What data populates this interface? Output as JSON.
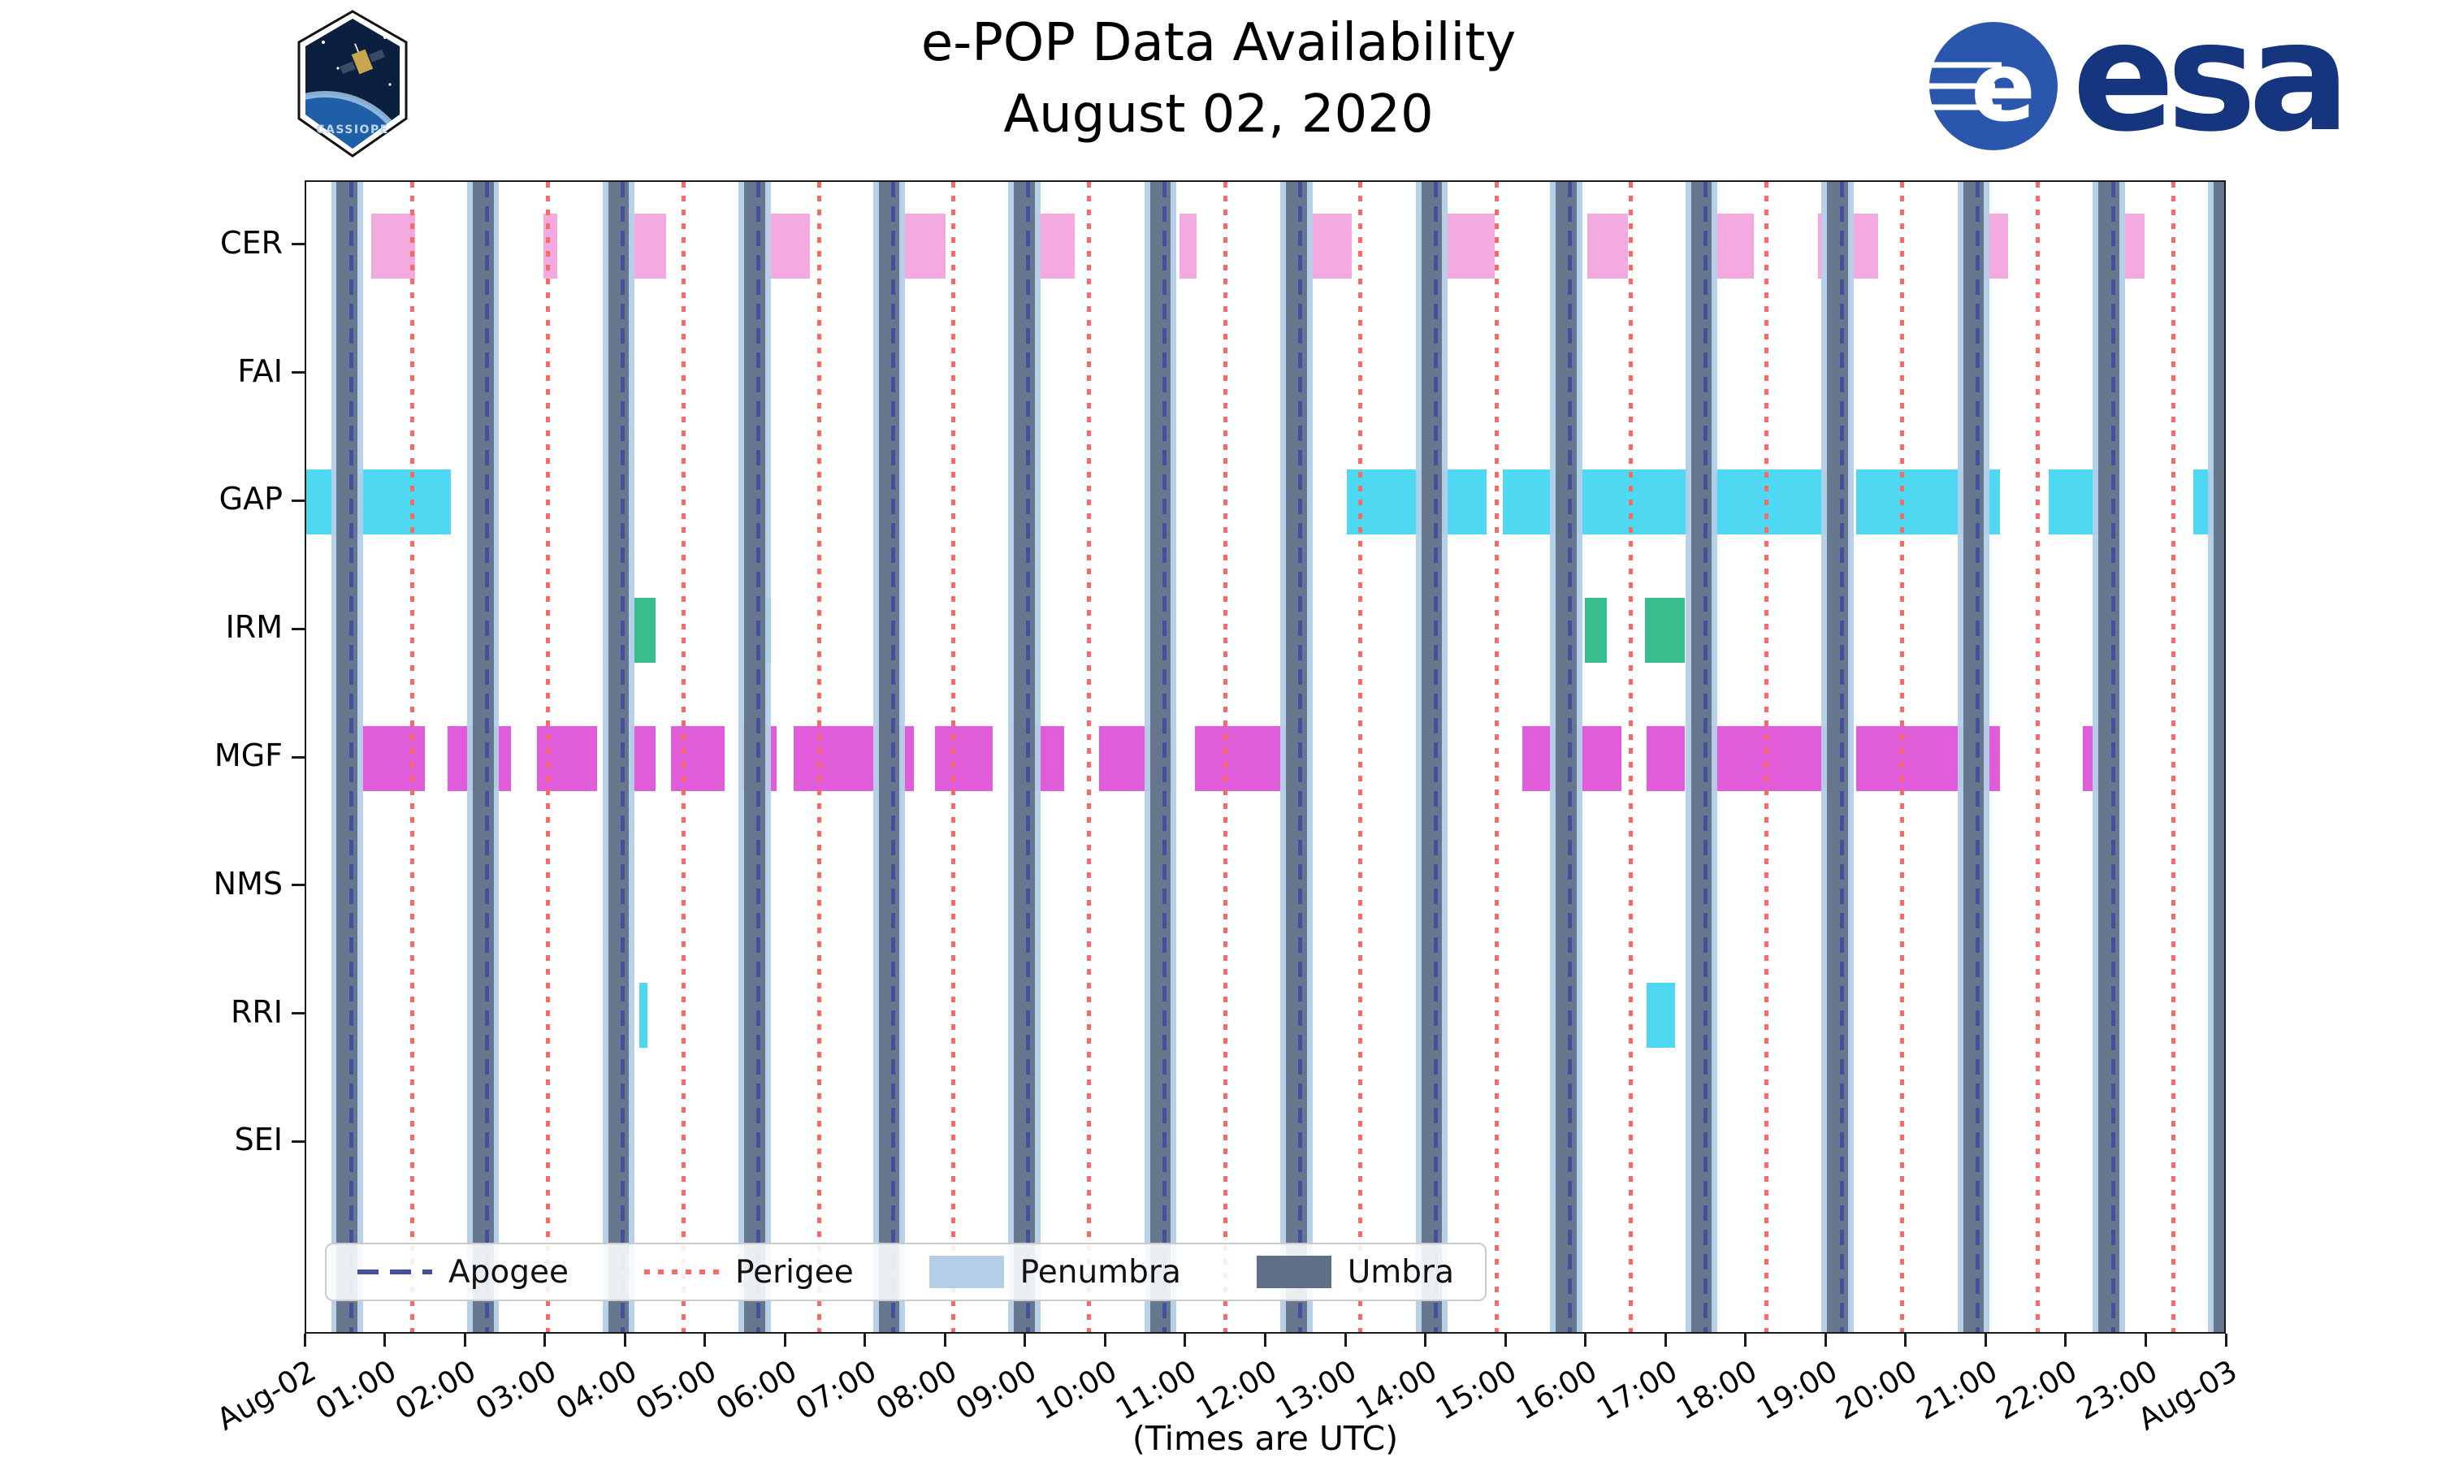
{
  "header": {
    "title": "e-POP Data Availability",
    "subtitle": "August 02, 2020",
    "cassiope_badge_label": "CASSIOPE",
    "esa_wordmark": "esa"
  },
  "legend": {
    "items": [
      {
        "label": "Apogee",
        "style": "dashed",
        "color": "#44509e"
      },
      {
        "label": "Perigee",
        "style": "dotted",
        "color": "#f96a64"
      },
      {
        "label": "Penumbra",
        "style": "patch",
        "color": "#b3cfe8"
      },
      {
        "label": "Umbra",
        "style": "patch",
        "color": "#5f7086"
      }
    ]
  },
  "chart_data": {
    "type": "timeline",
    "title": "e-POP Data Availability",
    "subtitle": "August 02, 2020",
    "xlabel": "(Times are UTC)",
    "x_axis": {
      "range_hours": [
        0,
        24
      ],
      "tick_interval_hours": 1,
      "tick_labels": [
        "Aug-02",
        "01:00",
        "02:00",
        "03:00",
        "04:00",
        "05:00",
        "06:00",
        "07:00",
        "08:00",
        "09:00",
        "10:00",
        "11:00",
        "12:00",
        "13:00",
        "14:00",
        "15:00",
        "16:00",
        "17:00",
        "18:00",
        "19:00",
        "20:00",
        "21:00",
        "22:00",
        "23:00",
        "Aug-03"
      ]
    },
    "instruments": [
      "CER",
      "FAI",
      "GAP",
      "IRM",
      "MGF",
      "NMS",
      "RRI",
      "SEI"
    ],
    "series": [
      {
        "name": "CER",
        "color": "#f5a9e1",
        "intervals": [
          [
            0.81,
            1.36
          ],
          [
            2.96,
            3.14
          ],
          [
            3.96,
            4.5
          ],
          [
            5.6,
            6.29
          ],
          [
            7.39,
            7.99
          ],
          [
            9.03,
            9.6
          ],
          [
            10.91,
            11.12
          ],
          [
            12.29,
            13.06
          ],
          [
            13.92,
            14.85
          ],
          [
            16.0,
            16.51
          ],
          [
            17.57,
            18.08
          ],
          [
            18.89,
            19.64
          ],
          [
            20.69,
            21.26
          ],
          [
            22.56,
            22.96
          ]
        ]
      },
      {
        "name": "FAI",
        "intervals": []
      },
      {
        "name": "GAP",
        "color": "#4ed8f2",
        "intervals": [
          [
            0.0,
            1.81
          ],
          [
            13.0,
            14.75
          ],
          [
            14.95,
            17.27
          ],
          [
            17.31,
            19.19
          ],
          [
            19.36,
            21.16
          ],
          [
            21.77,
            22.44
          ],
          [
            23.57,
            24.0
          ]
        ]
      },
      {
        "name": "IRM",
        "color": "#38bd8d",
        "intervals": [
          [
            4.06,
            4.36
          ],
          [
            5.6,
            5.8
          ],
          [
            15.97,
            16.25
          ],
          [
            16.72,
            17.22
          ]
        ]
      },
      {
        "name": "MGF",
        "color": "#e05cd8",
        "intervals": [
          [
            0.69,
            1.48
          ],
          [
            1.77,
            2.56
          ],
          [
            2.88,
            3.63
          ],
          [
            4.06,
            4.36
          ],
          [
            4.56,
            5.23
          ],
          [
            5.44,
            5.88
          ],
          [
            6.09,
            7.59
          ],
          [
            7.85,
            8.58
          ],
          [
            8.82,
            9.47
          ],
          [
            9.9,
            10.81
          ],
          [
            11.1,
            12.33
          ],
          [
            15.19,
            15.64
          ],
          [
            15.76,
            16.43
          ],
          [
            16.74,
            17.22
          ],
          [
            17.31,
            19.19
          ],
          [
            19.36,
            21.16
          ],
          [
            22.19,
            22.44
          ]
        ]
      },
      {
        "name": "NMS",
        "intervals": []
      },
      {
        "name": "RRI",
        "color": "#4ed8f2",
        "intervals": [
          [
            4.16,
            4.26
          ],
          [
            16.74,
            17.1
          ]
        ]
      },
      {
        "name": "SEI",
        "intervals": []
      }
    ],
    "events": {
      "apogee_hours": [
        0.56,
        2.26,
        3.95,
        5.65,
        7.33,
        9.02,
        10.72,
        12.42,
        14.11,
        15.79,
        17.48,
        19.18,
        20.88,
        22.57,
        23.98
      ],
      "perigee_hours": [
        1.32,
        3.02,
        4.71,
        6.41,
        8.08,
        9.78,
        11.48,
        13.17,
        14.87,
        16.55,
        18.24,
        19.94,
        21.63,
        23.33
      ],
      "umbra_centers_hours": [
        0.51,
        2.21,
        3.9,
        5.6,
        7.28,
        8.97,
        10.67,
        12.37,
        14.06,
        15.74,
        17.43,
        19.13,
        20.83,
        22.52,
        23.96
      ],
      "umbra_half_width_hours": 0.13,
      "penumbra_extra_hours": 0.07
    },
    "colors": {
      "apogee": "#44509e",
      "perigee": "#f96a64",
      "penumbra": "#b3cfe8",
      "umbra": "#5f7086"
    }
  }
}
